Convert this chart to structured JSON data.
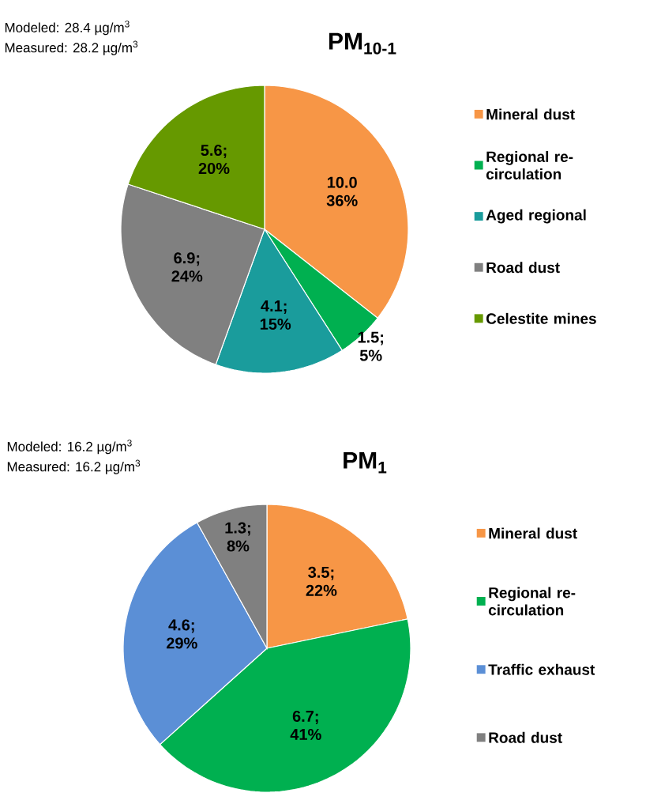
{
  "chart_data": [
    {
      "type": "pie",
      "title": "PM$_{10-1}$",
      "annotations": [
        "Modeled:  28.4 µg/m$^{3}$",
        "Measured: 28.2 µg/m$^{3}$"
      ],
      "categories": [
        "Mineral dust",
        "Regional re-circulation",
        "Aged regional",
        "Road dust",
        "Celestite mines"
      ],
      "values": [
        10.0,
        1.5,
        4.1,
        6.9,
        5.6
      ],
      "value_labels": [
        "10.0 36%",
        "1.5; 5%",
        "4.1; 15%",
        "6.9; 24%",
        "5.6; 20%"
      ],
      "colors": [
        "#f79646",
        "#00b050",
        "#1a9c9c",
        "#808080",
        "#669900"
      ],
      "legend": "right"
    },
    {
      "type": "pie",
      "title": "PM$_{1}$",
      "annotations": [
        "Modeled:  16.2 µg/m$^{3}$",
        "Measured: 16.2 µg/m$^{3}$"
      ],
      "categories": [
        "Mineral dust",
        "Regional re-circulation",
        "Traffic exhaust",
        "Road dust"
      ],
      "values": [
        3.5,
        6.7,
        4.6,
        1.3
      ],
      "value_labels": [
        "3.5; 22%",
        "6.7; 41%",
        "4.6; 29%",
        "1.3; 8%"
      ],
      "colors": [
        "#f79646",
        "#00b050",
        "#5b8fd6",
        "#808080"
      ],
      "legend": "right"
    }
  ]
}
